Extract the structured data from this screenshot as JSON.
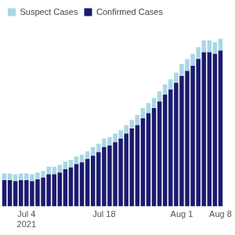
{
  "chart_data": {
    "type": "bar",
    "stacked": true,
    "legend": "upper left",
    "grid": false,
    "tick_labels": "x",
    "categories": [
      null,
      null,
      null,
      null,
      [
        "Jul 4",
        "2021"
      ],
      null,
      null,
      null,
      null,
      null,
      null,
      null,
      null,
      null,
      null,
      null,
      null,
      null,
      "Jul 18",
      null,
      null,
      null,
      null,
      null,
      null,
      null,
      null,
      null,
      null,
      null,
      null,
      null,
      "Aug 1",
      null,
      null,
      null,
      null,
      null,
      null,
      "Aug 8"
    ],
    "series": [
      {
        "name": "Confirmed Cases",
        "color": "#1b1b6f",
        "values": [
          31,
          31,
          30,
          31,
          31,
          30,
          32,
          34,
          38,
          38,
          40,
          44,
          46,
          50,
          52,
          56,
          60,
          64,
          70,
          72,
          76,
          80,
          86,
          92,
          96,
          104,
          110,
          116,
          124,
          132,
          138,
          146,
          154,
          160,
          166,
          174,
          182,
          182,
          180,
          184
        ]
      },
      {
        "name": "Suspect Cases",
        "color": "#a9d7e6",
        "values": [
          8,
          8,
          8,
          8,
          8,
          8,
          8,
          8,
          9,
          9,
          9,
          9,
          9,
          9,
          9,
          9,
          10,
          10,
          10,
          10,
          10,
          10,
          10,
          10,
          12,
          12,
          12,
          12,
          12,
          12,
          12,
          12,
          14,
          14,
          14,
          14,
          14,
          14,
          14,
          14
        ]
      }
    ],
    "ylim": [
      0,
      215
    ]
  }
}
